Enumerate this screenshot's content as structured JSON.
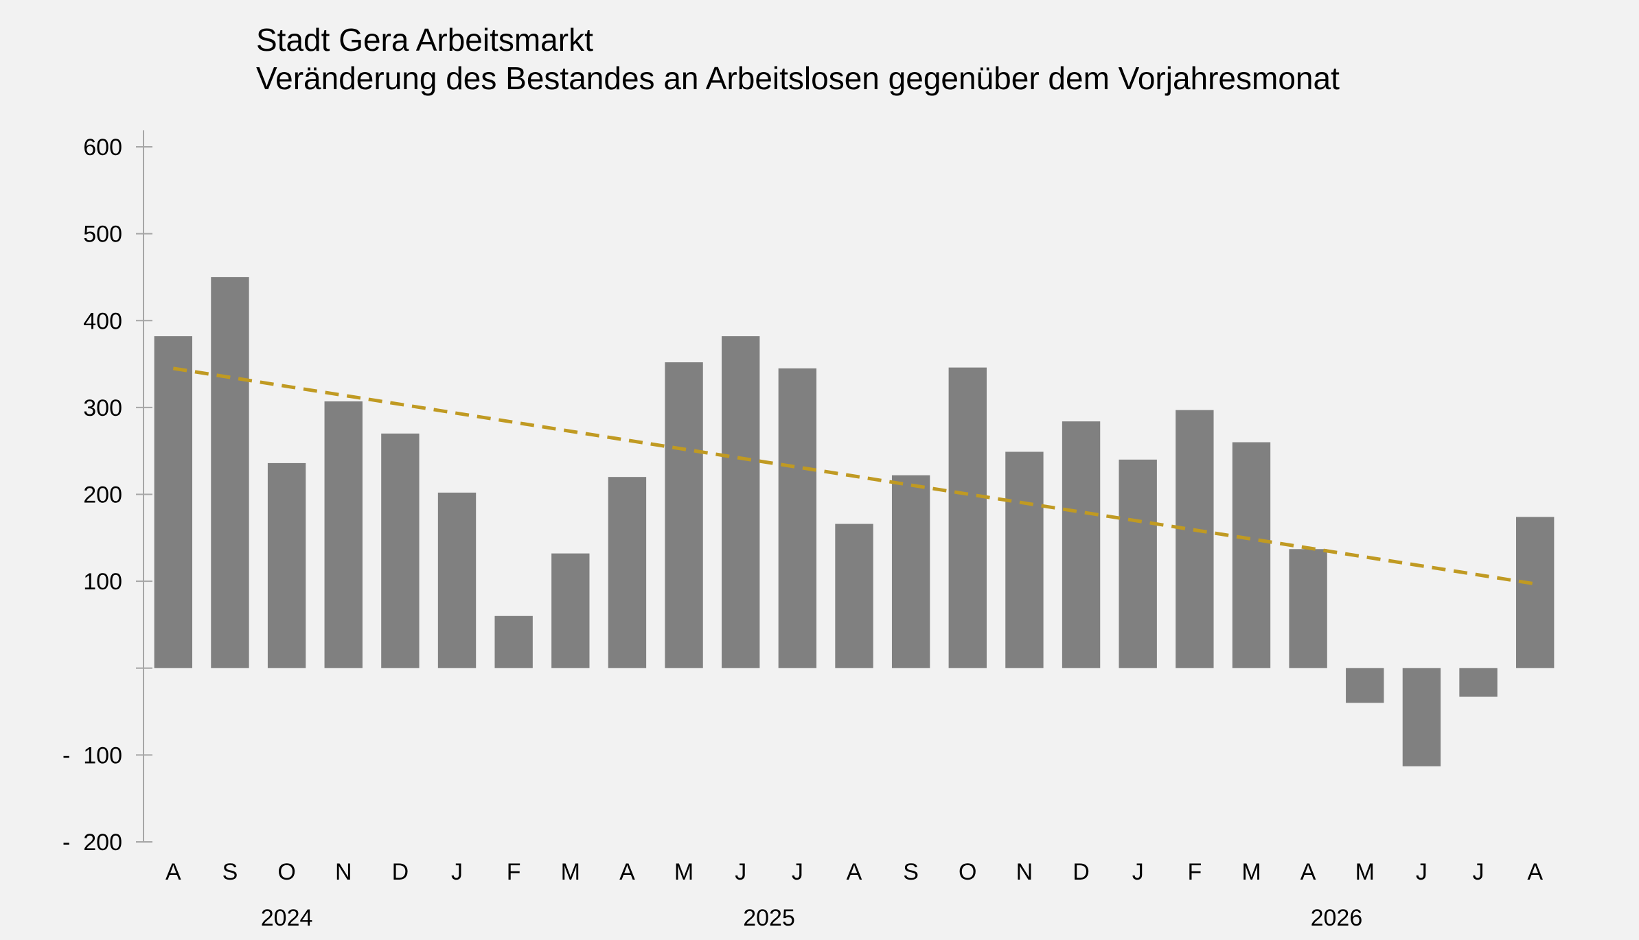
{
  "chart_data": {
    "type": "bar",
    "title": "Stadt Gera Arbeitsmarkt",
    "subtitle": "Veränderung des Bestandes an Arbeitslosen gegenüber dem Vorjahresmonat",
    "categories": [
      "A",
      "S",
      "O",
      "N",
      "D",
      "J",
      "F",
      "M",
      "A",
      "M",
      "J",
      "J",
      "A",
      "S",
      "O",
      "N",
      "D",
      "J",
      "F",
      "M",
      "A",
      "M",
      "J",
      "J",
      "A"
    ],
    "year_labels": [
      {
        "label": "2024",
        "category_index": 2
      },
      {
        "label": "2025",
        "category_index": 10.5
      },
      {
        "label": "2026",
        "category_index": 20.5
      }
    ],
    "series": [
      {
        "values": [
          382,
          450,
          236,
          307,
          270,
          202,
          60,
          132,
          220,
          352,
          382,
          345,
          166,
          222,
          346,
          249,
          284,
          240,
          297,
          260,
          137,
          -40,
          -113,
          -33,
          174
        ]
      }
    ],
    "trendline": {
      "start": 345,
      "end": 97,
      "style": "dashed"
    },
    "ylim": [
      -200,
      600
    ],
    "yticks": [
      600,
      500,
      400,
      300,
      200,
      100,
      0,
      -100,
      -200
    ],
    "ytick_labels": [
      "600",
      "500",
      "400",
      "300",
      "200",
      "100",
      "",
      "-  100",
      "-  200"
    ],
    "xlabel": "",
    "ylabel": "",
    "grid": false,
    "colors": {
      "bar": "#808080",
      "trend": "#c09a22",
      "axis": "#a6a6a6",
      "background": "#f2f2f2"
    }
  }
}
